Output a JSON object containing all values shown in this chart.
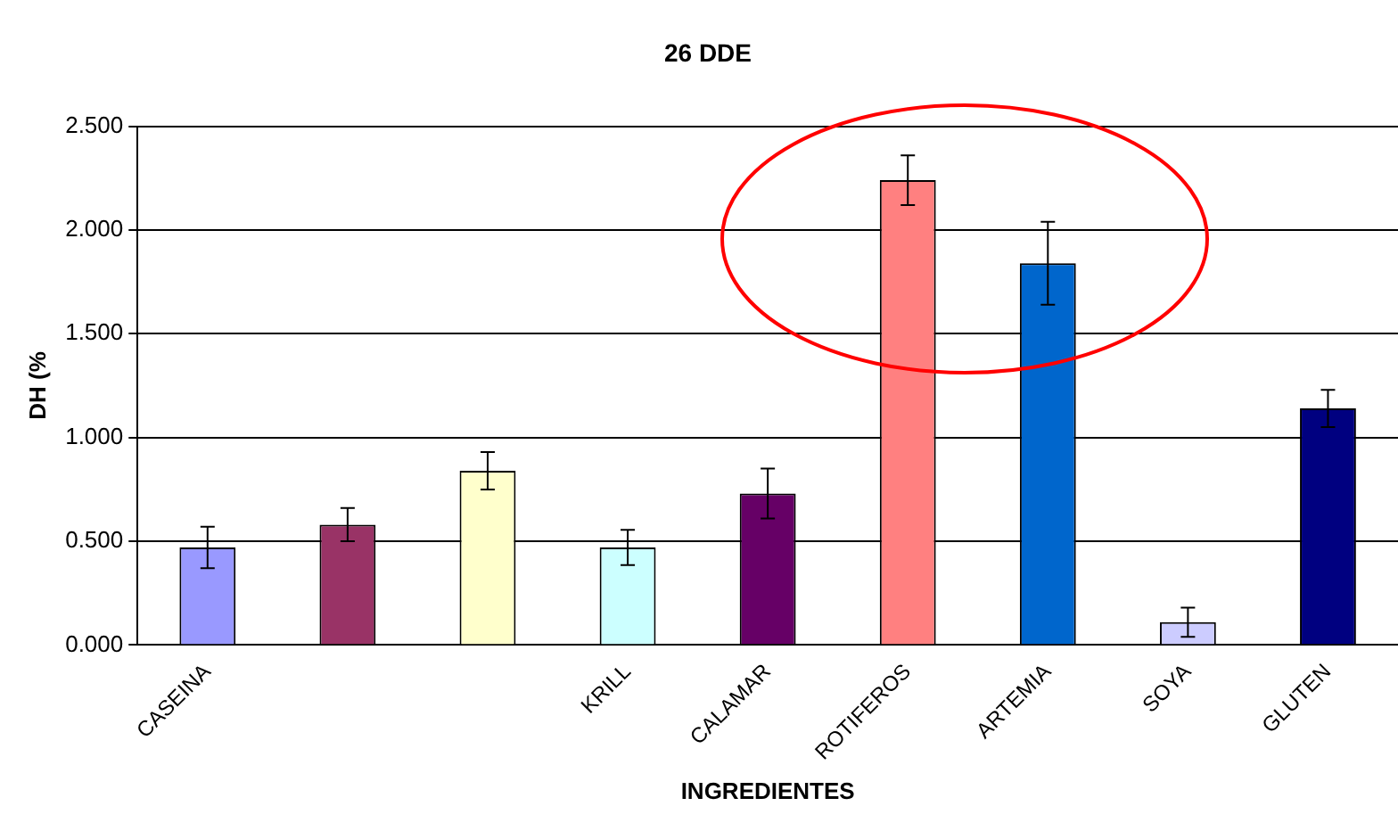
{
  "chart_data": {
    "type": "bar",
    "title": "26 DDE",
    "xlabel": "INGREDIENTES",
    "ylabel": "DH (%",
    "categories": [
      "CASEINA",
      null,
      null,
      "KRILL",
      "CALAMAR",
      "ROTIFEROS",
      "ARTEMIA",
      "SOYA",
      "GLUTEN"
    ],
    "values": [
      0.47,
      0.58,
      0.84,
      0.47,
      0.73,
      2.24,
      1.84,
      0.11,
      1.14
    ],
    "errors": [
      0.1,
      0.08,
      0.09,
      0.085,
      0.12,
      0.12,
      0.2,
      0.07,
      0.09
    ],
    "colors": [
      "#9999ff",
      "#993366",
      "#ffffcc",
      "#ccffff",
      "#660066",
      "#ff8080",
      "#0066cc",
      "#ccccff",
      "#000080"
    ],
    "ylim": [
      0,
      2.5
    ],
    "yticks": [
      {
        "value": 0,
        "label": "0.000"
      },
      {
        "value": 0.5,
        "label": "0.500"
      },
      {
        "value": 1,
        "label": "1.000"
      },
      {
        "value": 1.5,
        "label": "1.500"
      },
      {
        "value": 2,
        "label": "2.000"
      },
      {
        "value": 2.5,
        "label": "2.500"
      }
    ],
    "grid": "y",
    "legend": false
  }
}
